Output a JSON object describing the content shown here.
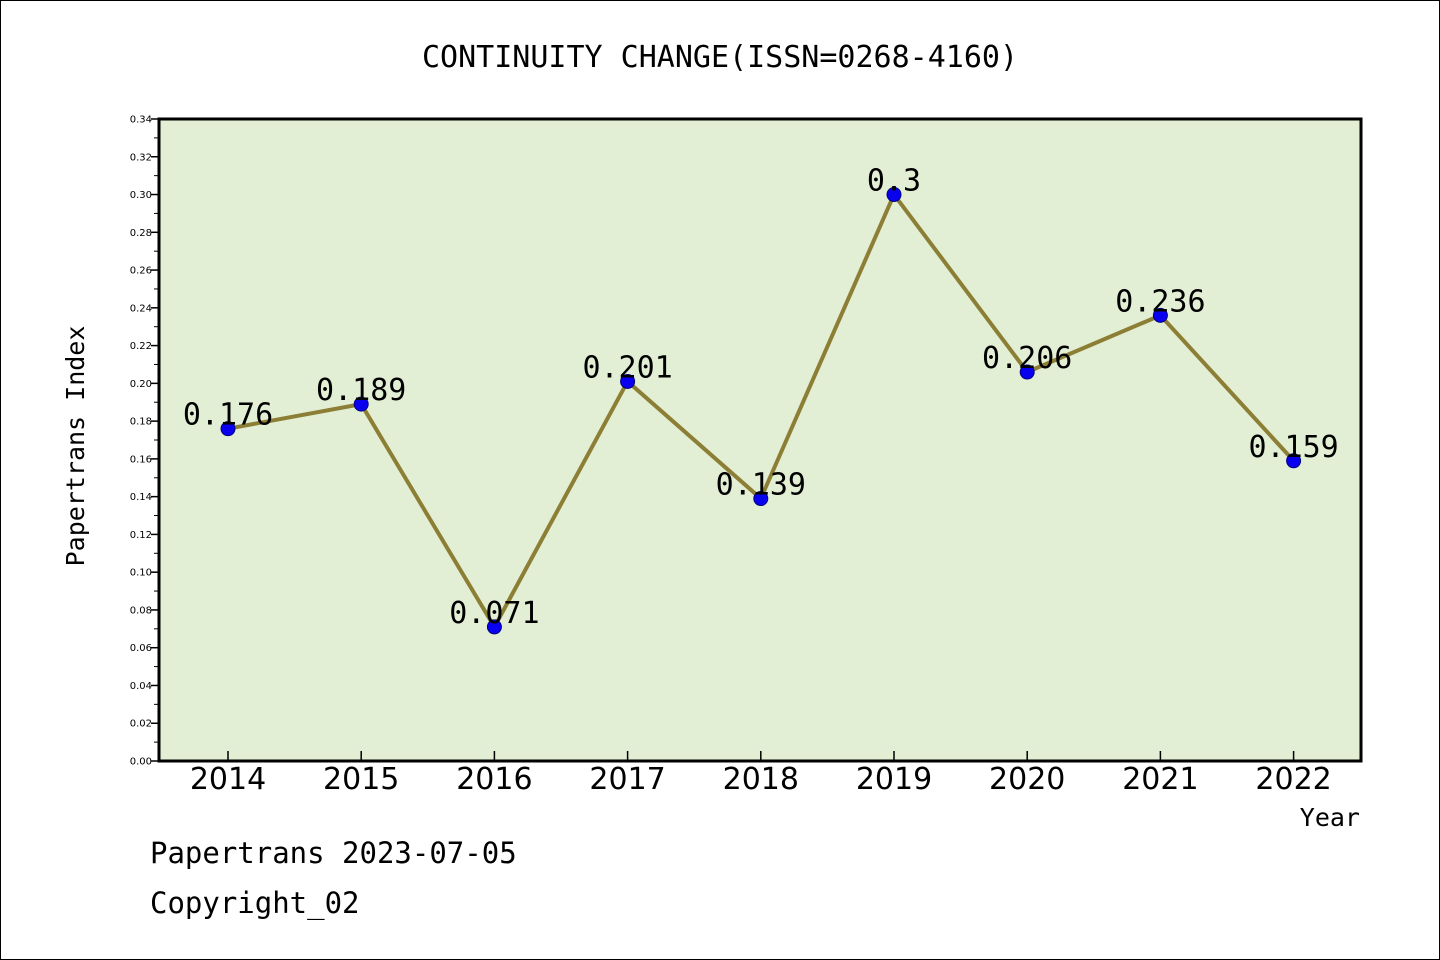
{
  "chart_data": {
    "type": "line",
    "title": "CONTINUITY CHANGE(ISSN=0268-4160)",
    "xlabel": "Year",
    "ylabel": "Papertrans Index",
    "categories": [
      "2014",
      "2015",
      "2016",
      "2017",
      "2018",
      "2019",
      "2020",
      "2021",
      "2022"
    ],
    "series": [
      {
        "values": [
          0.176,
          0.189,
          0.071,
          0.201,
          0.139,
          0.3,
          0.206,
          0.236,
          0.159
        ]
      }
    ],
    "data_labels": [
      "0.176",
      "0.189",
      "0.071",
      "0.201",
      "0.139",
      "0.3",
      "0.206",
      "0.236",
      "0.159"
    ],
    "ylim": [
      0,
      0.34
    ],
    "yticks": [
      "0.00",
      "0.02",
      "0.04",
      "0.06",
      "0.08",
      "0.10",
      "0.12",
      "0.14",
      "0.16",
      "0.18",
      "0.20",
      "0.22",
      "0.24",
      "0.26",
      "0.28",
      "0.30",
      "0.32",
      "0.34"
    ],
    "grid": false,
    "legend": "none",
    "colors": {
      "plot_background": "#e2efd5",
      "line": "#8c7f35",
      "marker": "#0a00f0",
      "marker_edge": "#000080"
    }
  },
  "footer": {
    "stamp": "Papertrans 2023-07-05",
    "copyright": "Copyright_02"
  }
}
